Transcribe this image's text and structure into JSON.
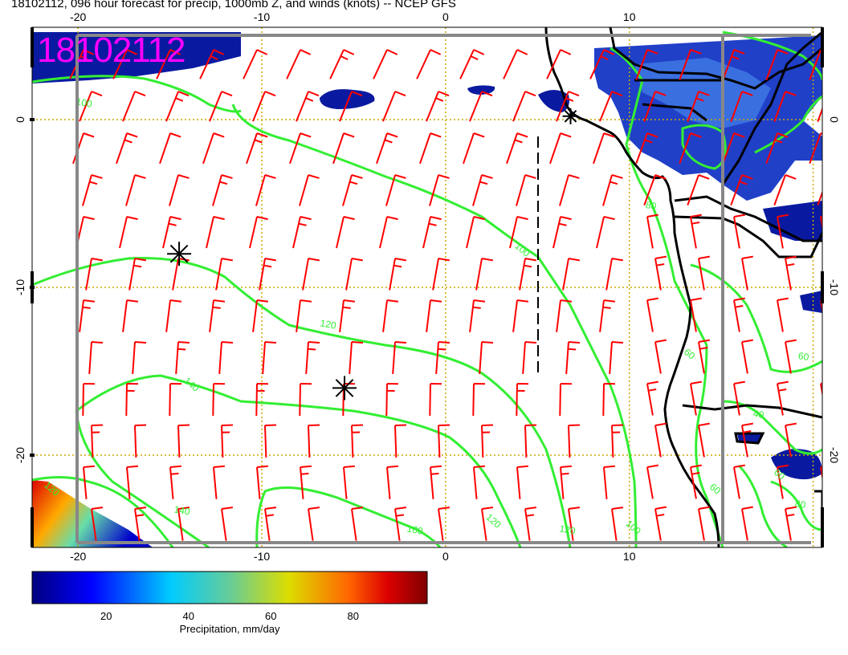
{
  "header": {
    "title": "18102112, 096 hour forecast for precip, 1000mb Z, and winds (knots) -- NCEP GFS",
    "stamp": "18102112"
  },
  "map": {
    "lon_ticks_top": [
      {
        "value": -20,
        "label": "-20"
      },
      {
        "value": -10,
        "label": "-10"
      },
      {
        "value": 0,
        "label": "0"
      },
      {
        "value": 10,
        "label": "10"
      }
    ],
    "lon_ticks_bottom": [
      {
        "value": -20,
        "label": "-20"
      },
      {
        "value": -10,
        "label": "-10"
      },
      {
        "value": 0,
        "label": "0"
      },
      {
        "value": 10,
        "label": "10"
      }
    ],
    "lat_ticks": [
      {
        "value": 0,
        "label": "0"
      },
      {
        "value": -10,
        "label": "-10"
      },
      {
        "value": -20,
        "label": "-20"
      }
    ],
    "lon_range": [
      -22.5,
      20.5
    ],
    "lat_range": [
      -25.5,
      5.5
    ],
    "colors": {
      "wind_barbs": "#ff0000",
      "height_contours": "#33ee33",
      "grid_lines": "#ccaa00",
      "coastline": "#000000",
      "stamp": "#ff00ff"
    },
    "height_contour_labels": [
      "100",
      "100",
      "120",
      "140",
      "140",
      "120",
      "160",
      "120",
      "120",
      "100",
      "80",
      "60",
      "40",
      "60",
      "80",
      "60",
      "60"
    ],
    "markers": [
      {
        "name": "low-marker",
        "lon": -14.5,
        "lat": -8
      },
      {
        "name": "high-marker",
        "lon": -5.5,
        "lat": -16
      },
      {
        "name": "coast-marker",
        "lon": 6.8,
        "lat": 0.2
      }
    ]
  },
  "colorbar": {
    "title": "Precipitation, mm/day",
    "ticks": [
      {
        "value": 20,
        "label": "20"
      },
      {
        "value": 40,
        "label": "40"
      },
      {
        "value": 60,
        "label": "60"
      },
      {
        "value": 80,
        "label": "80"
      }
    ],
    "range": [
      2,
      98
    ]
  }
}
